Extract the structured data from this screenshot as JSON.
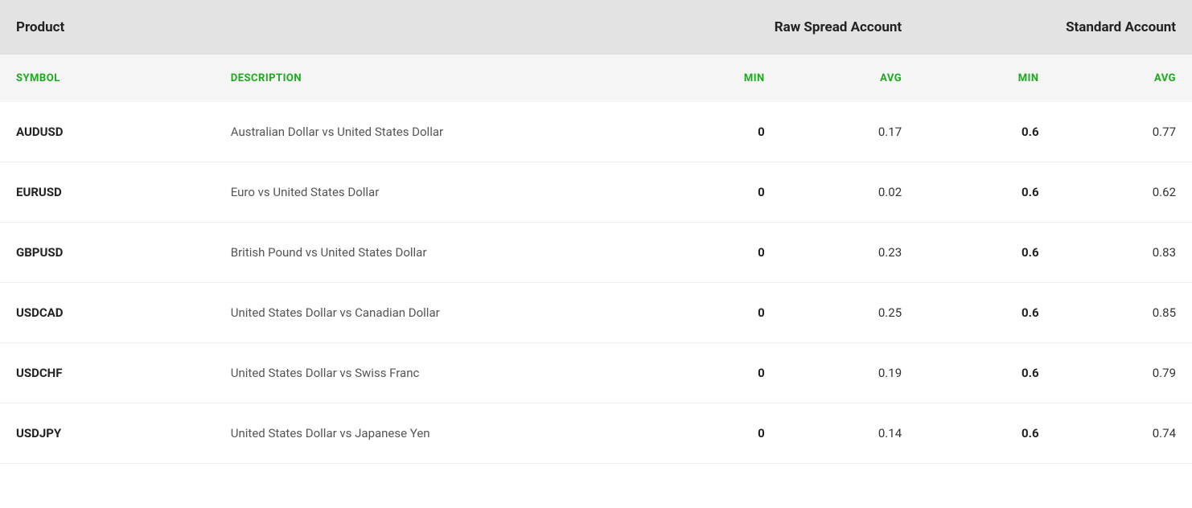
{
  "colors": {
    "group_header_bg": "#e3e3e3",
    "sub_header_bg": "#f5f5f5",
    "sub_header_text": "#1aaa1a",
    "row_border": "#eeeeee",
    "text_primary": "#222222",
    "text_secondary": "#555555",
    "background": "#ffffff"
  },
  "table": {
    "group_headers": {
      "product": "Product",
      "raw": "Raw Spread Account",
      "standard": "Standard Account"
    },
    "columns": {
      "symbol": "SYMBOL",
      "description": "DESCRIPTION",
      "raw_min": "MIN",
      "raw_avg": "AVG",
      "std_min": "MIN",
      "std_avg": "AVG"
    },
    "rows": [
      {
        "symbol": "AUDUSD",
        "description": "Australian Dollar vs United States Dollar",
        "raw_min": "0",
        "raw_avg": "0.17",
        "std_min": "0.6",
        "std_avg": "0.77"
      },
      {
        "symbol": "EURUSD",
        "description": "Euro vs United States Dollar",
        "raw_min": "0",
        "raw_avg": "0.02",
        "std_min": "0.6",
        "std_avg": "0.62"
      },
      {
        "symbol": "GBPUSD",
        "description": "British Pound vs United States Dollar",
        "raw_min": "0",
        "raw_avg": "0.23",
        "std_min": "0.6",
        "std_avg": "0.83"
      },
      {
        "symbol": "USDCAD",
        "description": "United States Dollar vs Canadian Dollar",
        "raw_min": "0",
        "raw_avg": "0.25",
        "std_min": "0.6",
        "std_avg": "0.85"
      },
      {
        "symbol": "USDCHF",
        "description": "United States Dollar vs Swiss Franc",
        "raw_min": "0",
        "raw_avg": "0.19",
        "std_min": "0.6",
        "std_avg": "0.79"
      },
      {
        "symbol": "USDJPY",
        "description": "United States Dollar vs Japanese Yen",
        "raw_min": "0",
        "raw_avg": "0.14",
        "std_min": "0.6",
        "std_avg": "0.74"
      }
    ]
  }
}
